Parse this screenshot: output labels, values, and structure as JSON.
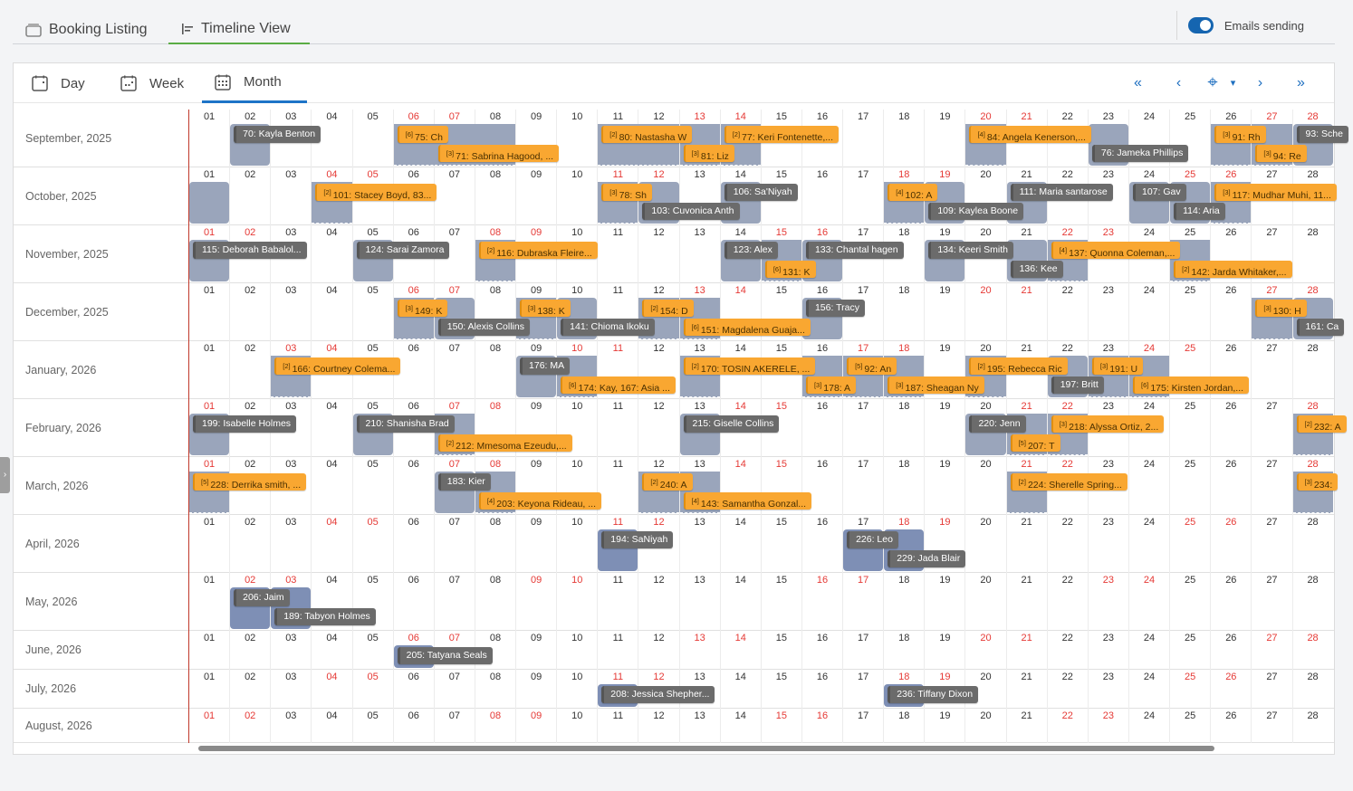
{
  "top_tabs": [
    {
      "label": "Booking Listing",
      "icon": "inbox-icon"
    },
    {
      "label": "Timeline View",
      "icon": "timeline-icon",
      "active": true
    }
  ],
  "emails": {
    "label": "Emails sending",
    "on": true
  },
  "view_tabs": [
    {
      "label": "Day",
      "icon": "calendar-day-icon"
    },
    {
      "label": "Week",
      "icon": "calendar-week-icon"
    },
    {
      "label": "Month",
      "icon": "calendar-month-icon",
      "active": true
    }
  ],
  "nav": {
    "first": "«",
    "prev": "‹",
    "today": "⌖",
    "dropdown": "▾",
    "next": "›",
    "last": "»"
  },
  "colors": {
    "accent": "#1e74c7",
    "tab_active": "#5aac44",
    "booking_gray": "#6b6b6b",
    "booking_orange": "#f9a731",
    "block": "#9aa5bb",
    "weekend": "#e53935"
  },
  "visible_days": 28,
  "months": [
    {
      "label": "September, 2025",
      "year": 2025,
      "month": 9,
      "bookings": [
        {
          "start_day": 2,
          "days": 1,
          "label": "70: Kayla Benton",
          "kind": "gray"
        },
        {
          "start_day": 6,
          "days": 2,
          "label": "75: Ch",
          "kind": "orange",
          "badge": "[6]"
        },
        {
          "start_day": 7,
          "days": 2,
          "label": "71: Sabrina Hagood, ...",
          "kind": "orange",
          "badge": "[3]"
        },
        {
          "start_day": 11,
          "days": 2,
          "label": "80: Nastasha W",
          "kind": "orange",
          "badge": "[2]"
        },
        {
          "start_day": 13,
          "days": 1,
          "label": "81: Liz",
          "kind": "orange",
          "badge": "[3]"
        },
        {
          "start_day": 14,
          "days": 1,
          "label": "77: Keri Fontenette,...",
          "kind": "orange",
          "badge": "[2]"
        },
        {
          "start_day": 20,
          "days": 1,
          "label": "84: Angela Kenerson,...",
          "kind": "orange",
          "badge": "[4]"
        },
        {
          "start_day": 23,
          "days": 1,
          "label": "76: Jameka Phillips",
          "kind": "gray"
        },
        {
          "start_day": 26,
          "days": 1,
          "label": "91: Rh",
          "kind": "orange",
          "badge": "[3]"
        },
        {
          "start_day": 27,
          "days": 1,
          "label": "94: Re",
          "kind": "orange",
          "badge": "[3]"
        },
        {
          "start_day": 28,
          "days": 1,
          "label": "93: Sche",
          "kind": "gray"
        }
      ]
    },
    {
      "label": "October, 2025",
      "year": 2025,
      "month": 10,
      "bookings": [
        {
          "start_day": 1,
          "days": 1,
          "label": "",
          "kind": "block"
        },
        {
          "start_day": 4,
          "days": 1,
          "label": "101: Stacey Boyd, 83...",
          "kind": "orange",
          "badge": "[2]"
        },
        {
          "start_day": 11,
          "days": 1,
          "label": "78: Sh",
          "kind": "orange",
          "badge": "[3]"
        },
        {
          "start_day": 12,
          "days": 1,
          "label": "103: Cuvonica Anth",
          "kind": "gray"
        },
        {
          "start_day": 14,
          "days": 1,
          "label": "106: Sa'Niyah",
          "kind": "gray"
        },
        {
          "start_day": 18,
          "days": 1,
          "label": "102: A",
          "kind": "orange",
          "badge": "[4]"
        },
        {
          "start_day": 19,
          "days": 1,
          "label": "109: Kaylea Boone",
          "kind": "gray"
        },
        {
          "start_day": 21,
          "days": 1,
          "label": "111: Maria santarose",
          "kind": "gray"
        },
        {
          "start_day": 24,
          "days": 1,
          "label": "107: Gav",
          "kind": "gray"
        },
        {
          "start_day": 25,
          "days": 1,
          "label": "114: Aria",
          "kind": "gray"
        },
        {
          "start_day": 26,
          "days": 1,
          "label": "117: Mudhar Muhi, 11...",
          "kind": "orange",
          "badge": "[3]"
        }
      ]
    },
    {
      "label": "November, 2025",
      "year": 2025,
      "month": 11,
      "bookings": [
        {
          "start_day": 1,
          "days": 1,
          "label": "115: Deborah Babalol...",
          "kind": "gray"
        },
        {
          "start_day": 5,
          "days": 1,
          "label": "124: Sarai Zamora",
          "kind": "gray"
        },
        {
          "start_day": 8,
          "days": 1,
          "label": "116: Dubraska Fleire...",
          "kind": "orange",
          "badge": "[2]"
        },
        {
          "start_day": 14,
          "days": 1,
          "label": "123: Alex",
          "kind": "gray"
        },
        {
          "start_day": 15,
          "days": 1,
          "label": "131: K",
          "kind": "orange",
          "badge": "[6]"
        },
        {
          "start_day": 16,
          "days": 1,
          "label": "133: Chantal hagen",
          "kind": "gray"
        },
        {
          "start_day": 19,
          "days": 1,
          "label": "134: Keeri Smith",
          "kind": "gray"
        },
        {
          "start_day": 21,
          "days": 1,
          "label": "136: Kee",
          "kind": "gray"
        },
        {
          "start_day": 22,
          "days": 1,
          "label": "137: Quonna Coleman,...",
          "kind": "orange",
          "badge": "[4]"
        },
        {
          "start_day": 25,
          "days": 1,
          "label": "142: Jarda Whitaker,...",
          "kind": "orange",
          "badge": "[2]"
        }
      ]
    },
    {
      "label": "December, 2025",
      "year": 2025,
      "month": 12,
      "bookings": [
        {
          "start_day": 6,
          "days": 1,
          "label": "149: K",
          "kind": "orange",
          "badge": "[3]"
        },
        {
          "start_day": 7,
          "days": 1,
          "label": "150: Alexis Collins",
          "kind": "gray"
        },
        {
          "start_day": 9,
          "days": 1,
          "label": "138: K",
          "kind": "orange",
          "badge": "[3]"
        },
        {
          "start_day": 10,
          "days": 1,
          "label": "141: Chioma Ikoku",
          "kind": "gray"
        },
        {
          "start_day": 12,
          "days": 1,
          "label": "154: D",
          "kind": "orange",
          "badge": "[2]"
        },
        {
          "start_day": 13,
          "days": 1,
          "label": "151: Magdalena Guaja...",
          "kind": "orange",
          "badge": "[6]"
        },
        {
          "start_day": 16,
          "days": 1,
          "label": "156: Tracy",
          "kind": "gray"
        },
        {
          "start_day": 27,
          "days": 1,
          "label": "130: H",
          "kind": "orange",
          "badge": "[3]"
        },
        {
          "start_day": 28,
          "days": 1,
          "label": "161: Ca",
          "kind": "gray"
        }
      ]
    },
    {
      "label": "January, 2026",
      "year": 2026,
      "month": 1,
      "bookings": [
        {
          "start_day": 3,
          "days": 1,
          "label": "166: Courtney Colema...",
          "kind": "orange",
          "badge": "[2]"
        },
        {
          "start_day": 9,
          "days": 1,
          "label": "176: MA",
          "kind": "gray"
        },
        {
          "start_day": 10,
          "days": 1,
          "label": "174: Kay, 167: Asia ...",
          "kind": "orange",
          "badge": "[6]"
        },
        {
          "start_day": 13,
          "days": 1,
          "label": "170: TOSIN AKERELE, ...",
          "kind": "orange",
          "badge": "[2]"
        },
        {
          "start_day": 16,
          "days": 1,
          "label": "178: A",
          "kind": "orange",
          "badge": "[3]"
        },
        {
          "start_day": 17,
          "days": 1,
          "label": "92: An",
          "kind": "orange",
          "badge": "[5]"
        },
        {
          "start_day": 18,
          "days": 1,
          "label": "187: Sheagan Ny",
          "kind": "orange",
          "badge": "[3]"
        },
        {
          "start_day": 20,
          "days": 1,
          "label": "195: Rebecca Ric",
          "kind": "orange",
          "badge": "[2]"
        },
        {
          "start_day": 22,
          "days": 1,
          "label": "197: Britt",
          "kind": "gray"
        },
        {
          "start_day": 23,
          "days": 1,
          "label": "191: U",
          "kind": "orange",
          "badge": "[3]"
        },
        {
          "start_day": 24,
          "days": 1,
          "label": "175: Kirsten Jordan,...",
          "kind": "orange",
          "badge": "[6]"
        }
      ]
    },
    {
      "label": "February, 2026",
      "year": 2026,
      "month": 2,
      "bookings": [
        {
          "start_day": 1,
          "days": 1,
          "label": "199: Isabelle Holmes",
          "kind": "gray"
        },
        {
          "start_day": 5,
          "days": 1,
          "label": "210: Shanisha Brad",
          "kind": "gray"
        },
        {
          "start_day": 7,
          "days": 1,
          "label": "212: Mmesoma Ezeudu,...",
          "kind": "orange",
          "badge": "[2]"
        },
        {
          "start_day": 13,
          "days": 1,
          "label": "215: Giselle Collins",
          "kind": "gray"
        },
        {
          "start_day": 20,
          "days": 1,
          "label": "220: Jenn",
          "kind": "gray"
        },
        {
          "start_day": 21,
          "days": 1,
          "label": "207: T",
          "kind": "orange",
          "badge": "[5]"
        },
        {
          "start_day": 22,
          "days": 1,
          "label": "218: Alyssa Ortiz, 2...",
          "kind": "orange",
          "badge": "[3]"
        },
        {
          "start_day": 28,
          "days": 1,
          "label": "232: A",
          "kind": "orange",
          "badge": "[2]"
        }
      ]
    },
    {
      "label": "March, 2026",
      "year": 2026,
      "month": 3,
      "bookings": [
        {
          "start_day": 1,
          "days": 1,
          "label": "228: Derrika smith, ...",
          "kind": "orange",
          "badge": "[5]"
        },
        {
          "start_day": 7,
          "days": 1,
          "label": "183: Kier",
          "kind": "gray"
        },
        {
          "start_day": 8,
          "days": 1,
          "label": "203: Keyona Rideau, ...",
          "kind": "orange",
          "badge": "[4]"
        },
        {
          "start_day": 12,
          "days": 1,
          "label": "240: A",
          "kind": "orange",
          "badge": "[2]"
        },
        {
          "start_day": 13,
          "days": 1,
          "label": "143: Samantha Gonzal...",
          "kind": "orange",
          "badge": "[4]"
        },
        {
          "start_day": 21,
          "days": 1,
          "label": "224: Sherelle Spring...",
          "kind": "orange",
          "badge": "[2]"
        },
        {
          "start_day": 28,
          "days": 1,
          "label": "234:",
          "kind": "orange",
          "badge": "[3]"
        }
      ]
    },
    {
      "label": "April, 2026",
      "year": 2026,
      "month": 4,
      "bookings": [
        {
          "start_day": 11,
          "days": 1,
          "label": "194: SaNiyah",
          "kind": "gray"
        },
        {
          "start_day": 17,
          "days": 1,
          "label": "226: Leo",
          "kind": "gray"
        },
        {
          "start_day": 18,
          "days": 1,
          "label": "229: Jada Blair",
          "kind": "gray"
        }
      ]
    },
    {
      "label": "May, 2026",
      "year": 2026,
      "month": 5,
      "bookings": [
        {
          "start_day": 2,
          "days": 1,
          "label": "206: Jaim",
          "kind": "gray"
        },
        {
          "start_day": 3,
          "days": 1,
          "label": "189: Tabyon Holmes",
          "kind": "gray"
        }
      ]
    },
    {
      "label": "June, 2026",
      "year": 2026,
      "month": 6,
      "bookings": [
        {
          "start_day": 6,
          "days": 1,
          "label": "205: Tatyana Seals",
          "kind": "gray"
        }
      ]
    },
    {
      "label": "July, 2026",
      "year": 2026,
      "month": 7,
      "bookings": [
        {
          "start_day": 11,
          "days": 1,
          "label": "208: Jessica Shepher...",
          "kind": "gray"
        },
        {
          "start_day": 18,
          "days": 1,
          "label": "236: Tiffany Dixon",
          "kind": "gray"
        }
      ]
    },
    {
      "label": "August, 2026",
      "year": 2026,
      "month": 8,
      "bookings": []
    }
  ]
}
